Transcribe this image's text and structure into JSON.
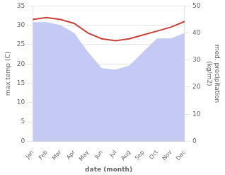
{
  "chart_data": {
    "type": "line",
    "categories": [
      "Jan",
      "Feb",
      "Mar",
      "Apr",
      "May",
      "Jun",
      "Jul",
      "Aug",
      "Sep",
      "Oct",
      "Nov",
      "Dec"
    ],
    "series": [
      {
        "type": "area",
        "axis": "y2",
        "color": "#c5caf5",
        "values": [
          44.0,
          44.0,
          43.0,
          40.0,
          33.0,
          27.0,
          26.5,
          28.0,
          33.0,
          38.0,
          38.0,
          40.0
        ]
      },
      {
        "type": "line",
        "color": "#c8413a",
        "values": [
          31.5,
          32.0,
          31.5,
          30.5,
          28.0,
          26.5,
          26.0,
          26.5,
          27.5,
          28.5,
          29.5,
          31.0
        ]
      }
    ],
    "xlabel": "date (month)",
    "ylabel": "max temp (C)",
    "y2label": "med. precipitation\n(kg/m2)",
    "ylim": [
      0,
      35
    ],
    "yticks": [
      0,
      5,
      10,
      15,
      20,
      25,
      30,
      35
    ],
    "y2lim": [
      0,
      50
    ],
    "y2ticks": [
      0,
      10,
      20,
      30,
      40,
      50
    ],
    "grid": true
  }
}
